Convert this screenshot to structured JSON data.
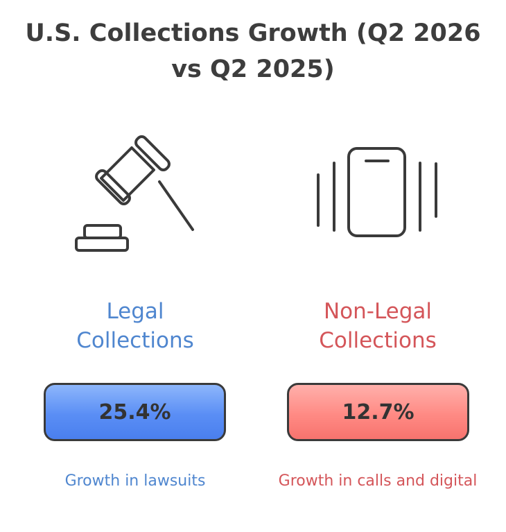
{
  "title": {
    "line1": "U.S. Collections Growth (Q2 2026",
    "line2": "vs Q2 2025)"
  },
  "legal": {
    "heading_line1": "Legal",
    "heading_line2": "Collections",
    "value": "25.4%",
    "caption": "Growth in lawsuits",
    "color": "#4f86cf",
    "icon": "gavel-icon"
  },
  "non_legal": {
    "heading_line1": "Non-Legal",
    "heading_line2": "Collections",
    "value": "12.7%",
    "caption": "Growth in calls and digital",
    "color": "#d45559",
    "icon": "vibrating-phone-icon"
  }
}
